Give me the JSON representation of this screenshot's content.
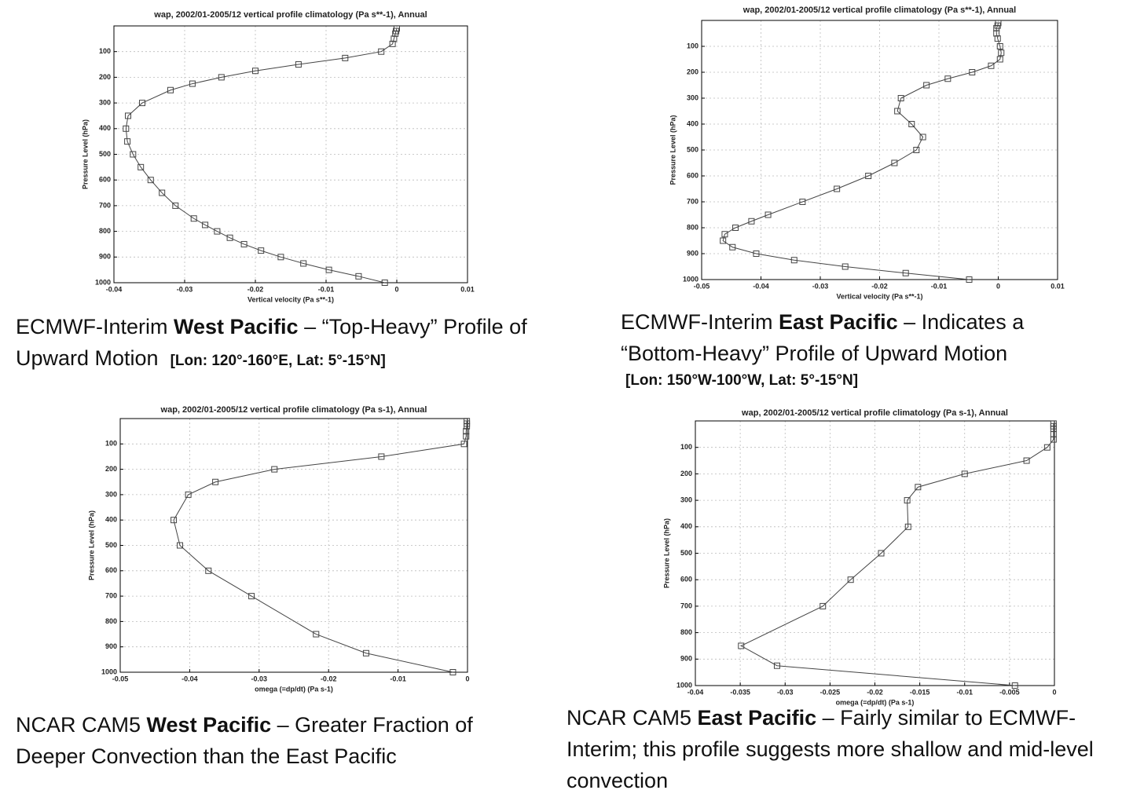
{
  "chart_data": [
    {
      "type": "line",
      "title": "wap, 2002/01-2005/12 vertical profile climatology (Pa s**-1), Annual",
      "x_label": "Vertical velocity (Pa s**-1)",
      "y_label": "Pressure Level (hPa)",
      "color": "#444",
      "grid": true,
      "xlim": [
        -0.04,
        0.01
      ],
      "xticks": [
        -0.04,
        -0.03,
        -0.02,
        -0.01,
        0,
        0.01
      ],
      "ylim": [
        1000,
        0
      ],
      "yticks": [
        100,
        200,
        300,
        400,
        500,
        600,
        700,
        800,
        900,
        1000
      ],
      "x": [
        -0.0017,
        -0.0054,
        -0.0096,
        -0.0132,
        -0.0164,
        -0.0192,
        -0.0216,
        -0.0236,
        -0.0254,
        -0.0271,
        -0.0287,
        -0.0313,
        -0.0332,
        -0.0348,
        -0.0362,
        -0.0373,
        -0.0381,
        -0.0383,
        -0.038,
        -0.036,
        -0.032,
        -0.0289,
        -0.0248,
        -0.02,
        -0.0139,
        -0.0073,
        -0.0022,
        -0.0006,
        -0.0004,
        -0.0002,
        -0.0001,
        0
      ],
      "y": [
        1000,
        975,
        950,
        925,
        900,
        875,
        850,
        825,
        800,
        775,
        750,
        700,
        650,
        600,
        550,
        500,
        450,
        400,
        350,
        300,
        250,
        225,
        200,
        175,
        150,
        125,
        100,
        70,
        50,
        30,
        20,
        10
      ]
    },
    {
      "type": "line",
      "title": "wap, 2002/01-2005/12 vertical profile climatology (Pa s**-1), Annual",
      "x_label": "Vertical velocity (Pa s**-1)",
      "y_label": "Pressure Level (hPa)",
      "color": "#444",
      "grid": true,
      "xlim": [
        -0.05,
        0.01
      ],
      "xticks": [
        -0.05,
        -0.04,
        -0.03,
        -0.02,
        -0.01,
        0,
        0.01
      ],
      "ylim": [
        1000,
        0
      ],
      "yticks": [
        100,
        200,
        300,
        400,
        500,
        600,
        700,
        800,
        900,
        1000
      ],
      "x": [
        -0.0049,
        -0.0156,
        -0.0258,
        -0.0344,
        -0.0408,
        -0.0448,
        -0.0464,
        -0.0461,
        -0.0443,
        -0.0416,
        -0.0388,
        -0.033,
        -0.0272,
        -0.0219,
        -0.0175,
        -0.0138,
        -0.0127,
        -0.0146,
        -0.017,
        -0.0164,
        -0.0121,
        -0.0085,
        -0.0044,
        -0.0012,
        0.0003,
        0.0005,
        0.0003,
        -0.0001,
        -0.0003,
        -0.0003,
        -0.0001,
        0
      ],
      "y": [
        1000,
        975,
        950,
        925,
        900,
        875,
        850,
        825,
        800,
        775,
        750,
        700,
        650,
        600,
        550,
        500,
        450,
        400,
        350,
        300,
        250,
        225,
        200,
        175,
        150,
        125,
        100,
        70,
        50,
        30,
        20,
        10
      ]
    },
    {
      "type": "line",
      "title": "wap, 2002/01-2005/12 vertical profile climatology (Pa s-1), Annual",
      "x_label": "omega (=dp/dt) (Pa s-1)",
      "y_label": "Pressure Level (hPa)",
      "color": "#444",
      "grid": true,
      "xlim": [
        -0.05,
        0
      ],
      "xticks": [
        -0.05,
        -0.04,
        -0.03,
        -0.02,
        -0.01,
        0
      ],
      "ylim": [
        1000,
        0
      ],
      "yticks": [
        100,
        200,
        300,
        400,
        500,
        600,
        700,
        800,
        900,
        1000
      ],
      "x": [
        -0.0021,
        -0.0146,
        -0.0218,
        -0.0311,
        -0.0373,
        -0.0414,
        -0.0423,
        -0.0402,
        -0.0363,
        -0.0278,
        -0.0124,
        -0.0005,
        -0.0002,
        -0.0002,
        -0.0001,
        -0.0001,
        -0.0001
      ],
      "y": [
        1000,
        925,
        850,
        700,
        600,
        500,
        400,
        300,
        250,
        200,
        150,
        100,
        70,
        50,
        30,
        20,
        10
      ]
    },
    {
      "type": "line",
      "title": "wap, 2002/01-2005/12 vertical profile climatology (Pa s-1), Annual",
      "x_label": "omega (=dp/dt) (Pa s-1)",
      "y_label": "Pressure Level (hPa)",
      "color": "#444",
      "grid": true,
      "xlim": [
        -0.04,
        0
      ],
      "xticks": [
        -0.04,
        -0.035,
        -0.03,
        -0.025,
        -0.02,
        -0.015,
        -0.01,
        -0.005,
        0
      ],
      "ylim": [
        1000,
        0
      ],
      "yticks": [
        100,
        200,
        300,
        400,
        500,
        600,
        700,
        800,
        900,
        1000
      ],
      "x": [
        -0.0044,
        -0.0309,
        -0.0349,
        -0.0258,
        -0.0227,
        -0.0193,
        -0.0163,
        -0.0164,
        -0.0152,
        -0.01,
        -0.0031,
        -0.0008,
        -0.0001,
        -0.0001,
        -0.0001,
        -0.0001,
        -0.0001
      ],
      "y": [
        1000,
        925,
        850,
        700,
        600,
        500,
        400,
        300,
        250,
        200,
        150,
        100,
        70,
        50,
        30,
        20,
        10
      ]
    }
  ],
  "captions": [
    {
      "lead": "ECMWF-Interim",
      "region": "West Pacific",
      "rest": "– “Top-Heavy” Profile of Upward Motion",
      "coords": "[Lon: 120°-160°E, Lat: 5°-15°N]"
    },
    {
      "lead": "ECMWF-Interim",
      "region": "East Pacific",
      "rest": "– Indicates a “Bottom-Heavy” Profile of Upward Motion",
      "coords": "[Lon: 150°W-100°W, Lat: 5°-15°N]"
    },
    {
      "lead": "NCAR CAM5",
      "region": "West Pacific",
      "rest": "– Greater Fraction of Deeper Convection than the East Pacific"
    },
    {
      "lead": "NCAR CAM5",
      "region": "East Pacific",
      "rest": "– Fairly similar to ECMWF-Interim; this profile suggests more shallow and mid-level convection"
    }
  ]
}
